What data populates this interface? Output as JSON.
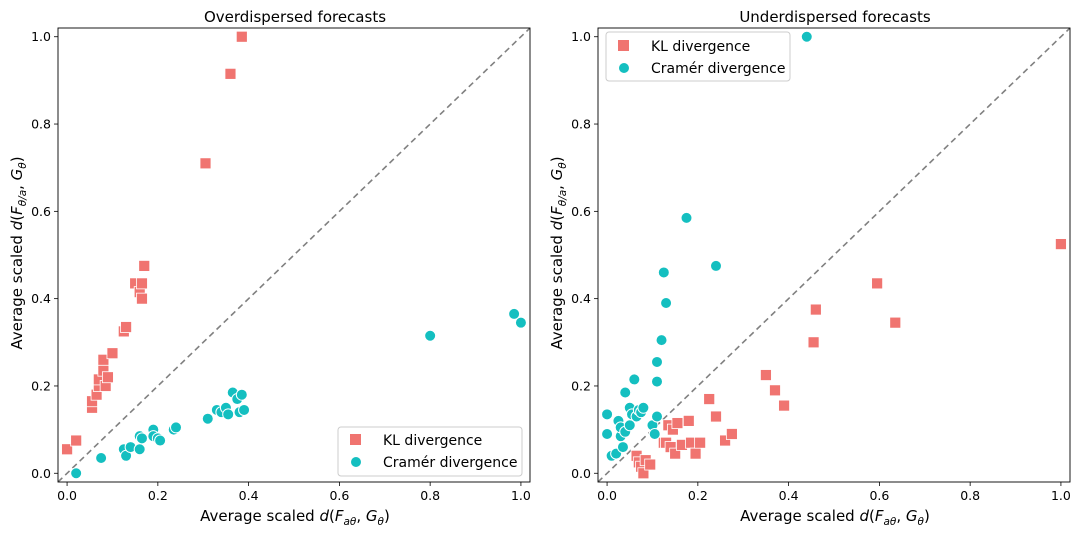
{
  "colors": {
    "kl": "#f07470",
    "cramer": "#14bfc0",
    "diagonal": "#808080"
  },
  "chart_data": [
    {
      "type": "scatter",
      "title": "Overdispersed forecasts",
      "xlabel": "Average scaled d(Fₐθ, Gθ)",
      "ylabel": "Average scaled d(Fθ/ₐ, Gθ)",
      "xlim": [
        -0.02,
        1.02
      ],
      "ylim": [
        -0.02,
        1.02
      ],
      "xticks": [
        "0.0",
        "0.2",
        "0.4",
        "0.6",
        "0.8",
        "1.0"
      ],
      "yticks": [
        "0.0",
        "0.2",
        "0.4",
        "0.6",
        "0.8",
        "1.0"
      ],
      "reference_line": "y = x (dashed)",
      "legend_position": "lower-right",
      "series": [
        {
          "name": "KL divergence",
          "marker": "square",
          "points": [
            [
              0.0,
              0.055
            ],
            [
              0.02,
              0.075
            ],
            [
              0.055,
              0.15
            ],
            [
              0.055,
              0.165
            ],
            [
              0.065,
              0.18
            ],
            [
              0.07,
              0.2
            ],
            [
              0.07,
              0.215
            ],
            [
              0.08,
              0.235
            ],
            [
              0.085,
              0.2
            ],
            [
              0.08,
              0.26
            ],
            [
              0.09,
              0.22
            ],
            [
              0.1,
              0.275
            ],
            [
              0.125,
              0.325
            ],
            [
              0.13,
              0.335
            ],
            [
              0.15,
              0.435
            ],
            [
              0.16,
              0.415
            ],
            [
              0.165,
              0.4
            ],
            [
              0.165,
              0.435
            ],
            [
              0.17,
              0.475
            ],
            [
              0.305,
              0.71
            ],
            [
              0.36,
              0.915
            ],
            [
              0.385,
              1.0
            ]
          ]
        },
        {
          "name": "Cramér divergence",
          "marker": "circle",
          "points": [
            [
              0.02,
              0.0
            ],
            [
              0.075,
              0.035
            ],
            [
              0.125,
              0.055
            ],
            [
              0.13,
              0.04
            ],
            [
              0.14,
              0.06
            ],
            [
              0.16,
              0.055
            ],
            [
              0.16,
              0.085
            ],
            [
              0.165,
              0.08
            ],
            [
              0.19,
              0.1
            ],
            [
              0.19,
              0.085
            ],
            [
              0.2,
              0.08
            ],
            [
              0.205,
              0.075
            ],
            [
              0.235,
              0.1
            ],
            [
              0.24,
              0.105
            ],
            [
              0.31,
              0.125
            ],
            [
              0.33,
              0.145
            ],
            [
              0.34,
              0.14
            ],
            [
              0.35,
              0.15
            ],
            [
              0.355,
              0.135
            ],
            [
              0.365,
              0.185
            ],
            [
              0.375,
              0.17
            ],
            [
              0.38,
              0.14
            ],
            [
              0.385,
              0.18
            ],
            [
              0.39,
              0.145
            ],
            [
              0.8,
              0.315
            ],
            [
              0.985,
              0.365
            ],
            [
              1.0,
              0.345
            ]
          ]
        }
      ]
    },
    {
      "type": "scatter",
      "title": "Underdispersed forecasts",
      "xlabel": "Average scaled d(Fₐθ, Gθ)",
      "ylabel": "Average scaled d(Fθ/ₐ, Gθ)",
      "xlim": [
        -0.02,
        1.02
      ],
      "ylim": [
        -0.02,
        1.02
      ],
      "xticks": [
        "0.0",
        "0.2",
        "0.4",
        "0.6",
        "0.8",
        "1.0"
      ],
      "yticks": [
        "0.0",
        "0.2",
        "0.4",
        "0.6",
        "0.8",
        "1.0"
      ],
      "reference_line": "y = x (dashed)",
      "legend_position": "upper-left",
      "series": [
        {
          "name": "KL divergence",
          "marker": "square",
          "points": [
            [
              0.065,
              0.04
            ],
            [
              0.07,
              0.025
            ],
            [
              0.075,
              0.015
            ],
            [
              0.08,
              0.0
            ],
            [
              0.085,
              0.03
            ],
            [
              0.095,
              0.02
            ],
            [
              0.125,
              0.07
            ],
            [
              0.13,
              0.07
            ],
            [
              0.135,
              0.11
            ],
            [
              0.14,
              0.06
            ],
            [
              0.145,
              0.1
            ],
            [
              0.15,
              0.045
            ],
            [
              0.155,
              0.115
            ],
            [
              0.165,
              0.065
            ],
            [
              0.18,
              0.12
            ],
            [
              0.185,
              0.07
            ],
            [
              0.195,
              0.045
            ],
            [
              0.205,
              0.07
            ],
            [
              0.225,
              0.17
            ],
            [
              0.24,
              0.13
            ],
            [
              0.26,
              0.075
            ],
            [
              0.275,
              0.09
            ],
            [
              0.35,
              0.225
            ],
            [
              0.37,
              0.19
            ],
            [
              0.39,
              0.155
            ],
            [
              0.455,
              0.3
            ],
            [
              0.46,
              0.375
            ],
            [
              0.595,
              0.435
            ],
            [
              0.635,
              0.345
            ],
            [
              1.0,
              0.525
            ]
          ]
        },
        {
          "name": "Cramér divergence",
          "marker": "circle",
          "points": [
            [
              0.0,
              0.135
            ],
            [
              0.0,
              0.09
            ],
            [
              0.01,
              0.04
            ],
            [
              0.02,
              0.045
            ],
            [
              0.025,
              0.12
            ],
            [
              0.03,
              0.085
            ],
            [
              0.03,
              0.105
            ],
            [
              0.035,
              0.06
            ],
            [
              0.04,
              0.095
            ],
            [
              0.04,
              0.185
            ],
            [
              0.05,
              0.11
            ],
            [
              0.05,
              0.15
            ],
            [
              0.055,
              0.135
            ],
            [
              0.06,
              0.215
            ],
            [
              0.065,
              0.13
            ],
            [
              0.07,
              0.145
            ],
            [
              0.075,
              0.14
            ],
            [
              0.08,
              0.15
            ],
            [
              0.1,
              0.11
            ],
            [
              0.105,
              0.09
            ],
            [
              0.11,
              0.13
            ],
            [
              0.11,
              0.21
            ],
            [
              0.11,
              0.255
            ],
            [
              0.12,
              0.305
            ],
            [
              0.125,
              0.46
            ],
            [
              0.13,
              0.39
            ],
            [
              0.175,
              0.585
            ],
            [
              0.24,
              0.475
            ],
            [
              0.44,
              1.0
            ]
          ]
        }
      ]
    }
  ]
}
